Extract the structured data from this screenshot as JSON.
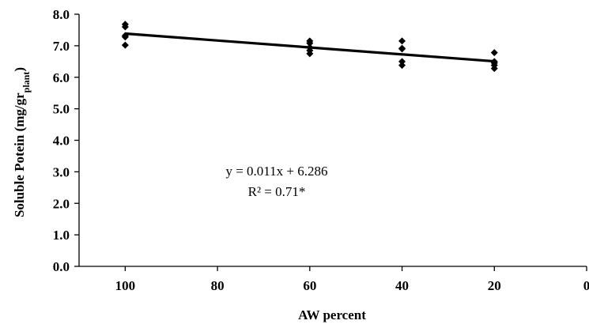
{
  "chart_data": {
    "type": "scatter",
    "title": "",
    "xlabel": "AW percent",
    "ylabel": {
      "main": "Soluble Potein (mg/gr",
      "subscript": "plant",
      "close": ")"
    },
    "xlim": [
      110,
      0
    ],
    "ylim": [
      0,
      8
    ],
    "x_reversed": true,
    "x_ticks": [
      100,
      80,
      60,
      40,
      20,
      0
    ],
    "x_tick_labels": [
      "100",
      "80",
      "60",
      "40",
      "20",
      "0"
    ],
    "y_ticks": [
      0,
      1,
      2,
      3,
      4,
      5,
      6,
      7,
      8
    ],
    "y_tick_labels": [
      "0.0",
      "1.0",
      "2.0",
      "3.0",
      "4.0",
      "5.0",
      "6.0",
      "7.0",
      "8.0"
    ],
    "grid": false,
    "legend": "none",
    "marker_color": "#000000",
    "series": [
      {
        "points": [
          {
            "x": 100,
            "y": 7.68
          },
          {
            "x": 100,
            "y": 7.6
          },
          {
            "x": 100,
            "y": 7.32
          },
          {
            "x": 100,
            "y": 7.28
          },
          {
            "x": 100,
            "y": 7.02
          },
          {
            "x": 60,
            "y": 7.15
          },
          {
            "x": 60,
            "y": 7.08
          },
          {
            "x": 60,
            "y": 6.95
          },
          {
            "x": 60,
            "y": 6.85
          },
          {
            "x": 60,
            "y": 6.75
          },
          {
            "x": 40,
            "y": 7.15
          },
          {
            "x": 40,
            "y": 6.92
          },
          {
            "x": 40,
            "y": 6.9
          },
          {
            "x": 40,
            "y": 6.5
          },
          {
            "x": 40,
            "y": 6.38
          },
          {
            "x": 20,
            "y": 6.78
          },
          {
            "x": 20,
            "y": 6.5
          },
          {
            "x": 20,
            "y": 6.45
          },
          {
            "x": 20,
            "y": 6.38
          },
          {
            "x": 20,
            "y": 6.28
          }
        ]
      }
    ],
    "trendline": {
      "type": "linear",
      "from": {
        "x": 100,
        "y": 7.386
      },
      "to": {
        "x": 20,
        "y": 6.506
      }
    },
    "annotations": [
      "y = 0.011x + 6.286",
      "R² = 0.71*"
    ]
  }
}
